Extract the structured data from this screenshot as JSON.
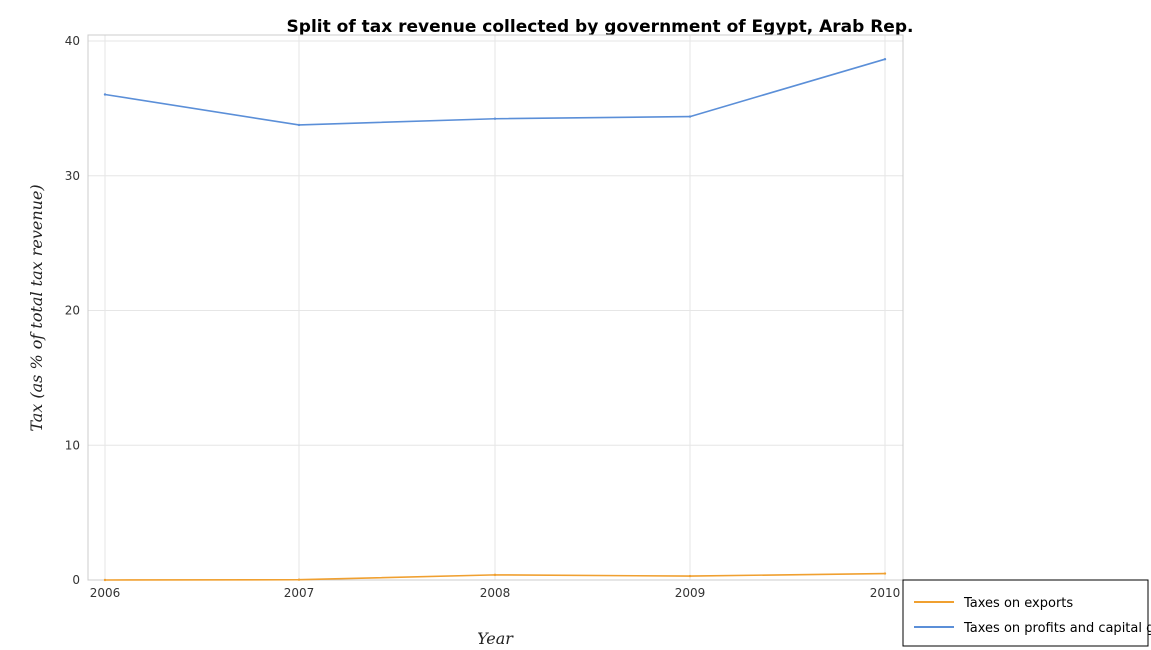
{
  "chart_data": {
    "type": "line",
    "title": "Split of tax revenue collected by government of Egypt, Arab Rep.",
    "xlabel": "Year",
    "ylabel": "Tax (as % of total tax revenue)",
    "categories": [
      "2006",
      "2007",
      "2008",
      "2009",
      "2010"
    ],
    "ylim": [
      0,
      40
    ],
    "yticks": [
      0,
      10,
      20,
      30,
      40
    ],
    "grid": true,
    "legend_position": "bottom-right",
    "series": [
      {
        "name": "Taxes on exports",
        "color": "#f0a030",
        "values": [
          0.0,
          0.02,
          0.38,
          0.29,
          0.48
        ]
      },
      {
        "name": "Taxes on profits and capital gains",
        "color": "#5b8fd8",
        "values": [
          36.03,
          33.77,
          34.23,
          34.39,
          38.65
        ]
      }
    ]
  }
}
